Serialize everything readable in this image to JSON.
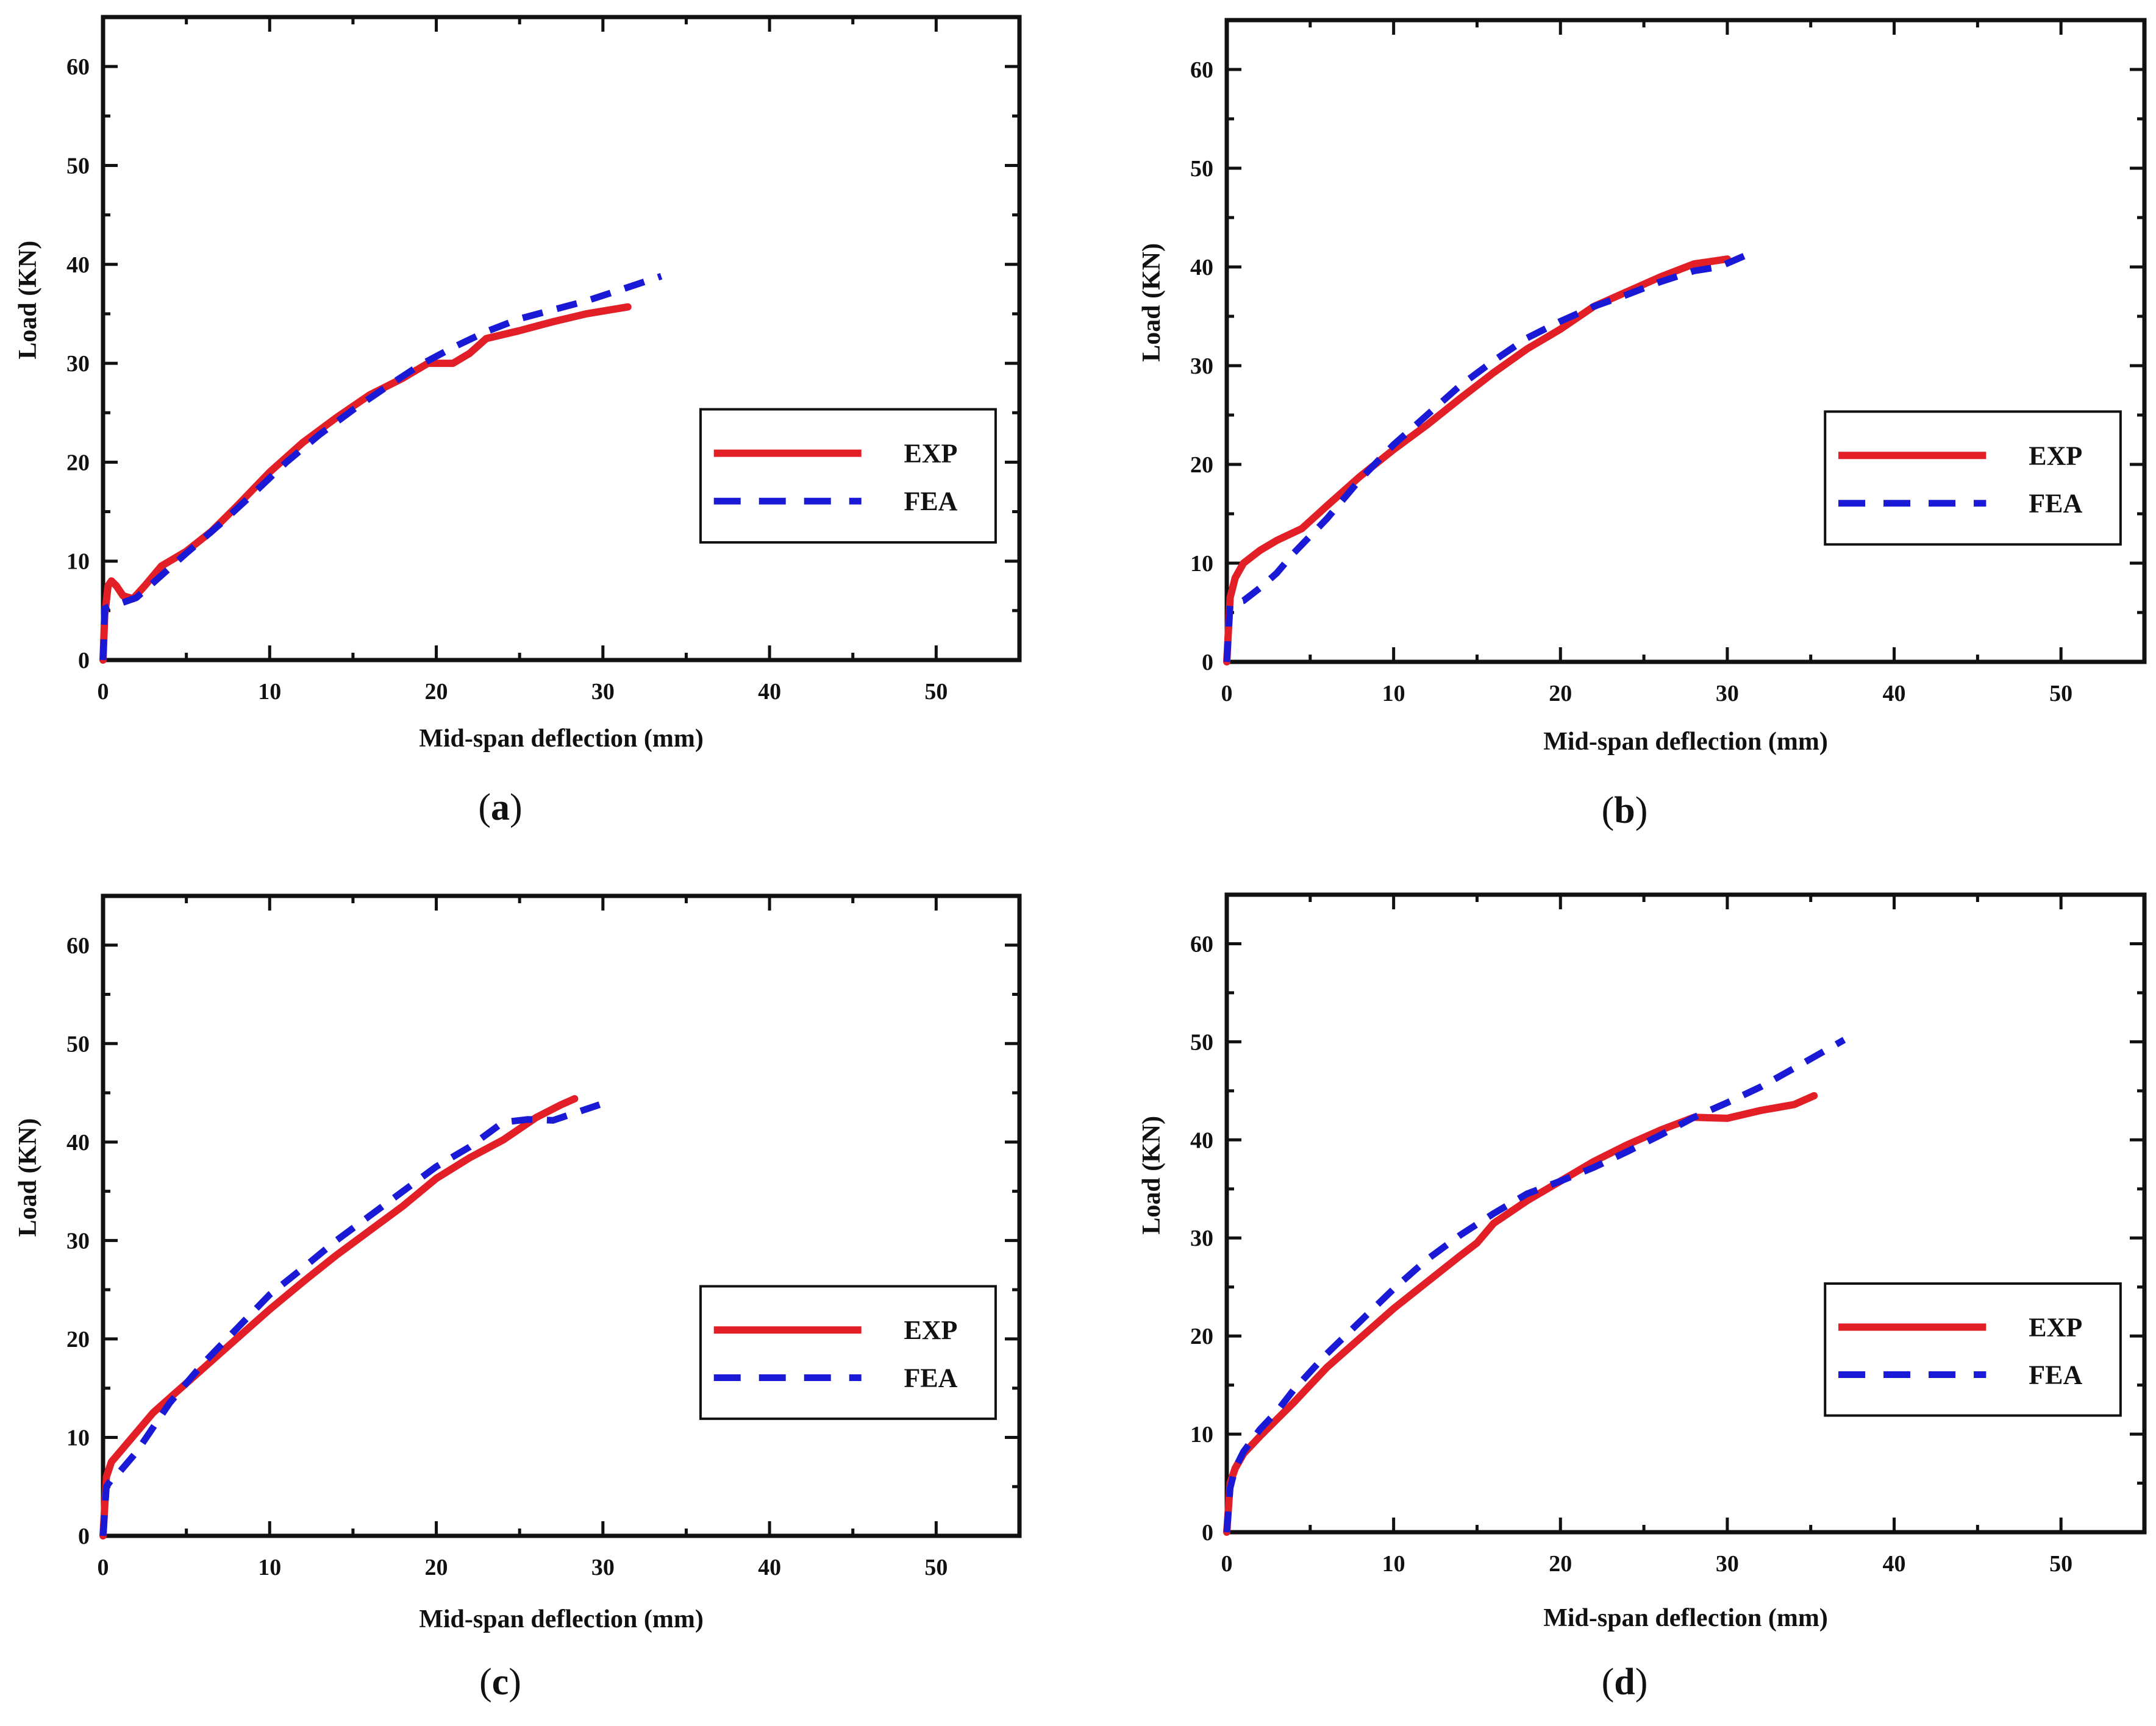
{
  "figure": {
    "panel_count": 4
  },
  "colors": {
    "exp": "#e21f26",
    "fea": "#1a1ad6",
    "axis": "#111111"
  },
  "chart_data": [
    {
      "type": "line",
      "caption_letter": "a",
      "xlabel": "Mid-span deflection (mm)",
      "ylabel": "Load (KN)",
      "xlim": [
        0,
        55
      ],
      "ylim": [
        0,
        65
      ],
      "xticks": [
        0,
        10,
        20,
        30,
        40,
        50
      ],
      "yticks": [
        0,
        10,
        20,
        30,
        40,
        50,
        60
      ],
      "legend": {
        "position": "right-middle",
        "entries": [
          "EXP",
          "FEA"
        ]
      },
      "series": [
        {
          "name": "EXP",
          "style": "solid",
          "x": [
            0,
            0.1,
            0.3,
            0.5,
            0.8,
            1.2,
            1.8,
            2.5,
            3.5,
            5,
            6.5,
            8,
            10,
            12,
            14,
            16,
            18,
            19.5,
            21,
            22,
            23,
            25,
            27,
            29,
            31.5
          ],
          "y": [
            0,
            4.5,
            7.5,
            8,
            7.5,
            6.5,
            6.2,
            7.5,
            9.5,
            11,
            13,
            15.5,
            19,
            22,
            24.5,
            26.8,
            28.5,
            30,
            30,
            31,
            32.5,
            33.3,
            34.2,
            35,
            35.7
          ]
        },
        {
          "name": "FEA",
          "style": "dashed",
          "x": [
            0,
            0.1,
            0.5,
            1,
            2,
            3,
            5,
            7,
            9,
            11,
            13,
            15,
            17,
            19,
            21,
            23,
            25,
            27,
            29,
            31,
            33.5
          ],
          "y": [
            0,
            5.2,
            5.5,
            5.7,
            6.3,
            7.8,
            10.8,
            13.7,
            16.8,
            20,
            22.8,
            25.3,
            27.6,
            29.8,
            31.6,
            33.2,
            34.5,
            35.4,
            36.3,
            37.4,
            38.8
          ]
        }
      ]
    },
    {
      "type": "line",
      "caption_letter": "b",
      "xlabel": "Mid-span deflection (mm)",
      "ylabel": "Load (KN)",
      "xlim": [
        0,
        55
      ],
      "ylim": [
        0,
        65
      ],
      "xticks": [
        0,
        10,
        20,
        30,
        40,
        50
      ],
      "yticks": [
        0,
        10,
        20,
        30,
        40,
        50,
        60
      ],
      "legend": {
        "position": "right-middle",
        "entries": [
          "EXP",
          "FEA"
        ]
      },
      "series": [
        {
          "name": "EXP",
          "style": "solid",
          "x": [
            0,
            0.2,
            0.5,
            1,
            2,
            3,
            4.5,
            6,
            8,
            10,
            12,
            14,
            16,
            18,
            20,
            22,
            24,
            26,
            28,
            30
          ],
          "y": [
            0,
            6.5,
            8.5,
            10,
            11.3,
            12.3,
            13.5,
            15.8,
            18.8,
            21.5,
            24,
            26.7,
            29.3,
            31.7,
            33.7,
            36,
            37.5,
            39,
            40.3,
            40.8
          ]
        },
        {
          "name": "FEA",
          "style": "dashed",
          "x": [
            0,
            0.2,
            0.5,
            1,
            2,
            3,
            4,
            6,
            8,
            10,
            12,
            14,
            16,
            18,
            20,
            22,
            24,
            26,
            28,
            29.5,
            31
          ],
          "y": [
            0,
            5.8,
            6,
            6.2,
            7.5,
            9,
            11,
            14.5,
            18.5,
            22,
            25,
            28,
            30.5,
            32.8,
            34.5,
            36,
            37.2,
            38.5,
            39.6,
            40,
            41.1
          ]
        }
      ]
    },
    {
      "type": "line",
      "caption_letter": "c",
      "xlabel": "Mid-span deflection (mm)",
      "ylabel": "Load (KN)",
      "xlim": [
        0,
        55
      ],
      "ylim": [
        0,
        65
      ],
      "xticks": [
        0,
        10,
        20,
        30,
        40,
        50
      ],
      "yticks": [
        0,
        10,
        20,
        30,
        40,
        50,
        60
      ],
      "legend": {
        "position": "right-middle",
        "entries": [
          "EXP",
          "FEA"
        ]
      },
      "series": [
        {
          "name": "EXP",
          "style": "solid",
          "x": [
            0,
            0.2,
            0.5,
            1,
            2,
            3,
            4,
            6,
            8,
            10,
            12,
            14,
            16,
            18,
            20,
            22,
            24,
            26,
            27.5,
            28.3
          ],
          "y": [
            0,
            6,
            7.5,
            8.5,
            10.5,
            12.5,
            14,
            17,
            20,
            23,
            25.8,
            28.5,
            31,
            33.5,
            36.3,
            38.4,
            40.2,
            42.5,
            43.8,
            44.4
          ]
        },
        {
          "name": "FEA",
          "style": "dashed",
          "x": [
            0,
            0.2,
            0.5,
            1,
            2,
            3,
            4,
            6,
            8,
            10,
            12,
            14,
            16,
            18,
            20,
            22,
            24,
            25.5,
            27,
            29.8
          ],
          "y": [
            0,
            5,
            5.7,
            6.5,
            8.5,
            11,
            13.5,
            17.5,
            21,
            24.5,
            27.2,
            30,
            32.5,
            35,
            37.5,
            39.5,
            42,
            42.3,
            42.2,
            43.8
          ]
        }
      ]
    },
    {
      "type": "line",
      "caption_letter": "d",
      "xlabel": "Mid-span deflection (mm)",
      "ylabel": "Load (KN)",
      "xlim": [
        0,
        55
      ],
      "ylim": [
        0,
        65
      ],
      "xticks": [
        0,
        10,
        20,
        30,
        40,
        50
      ],
      "yticks": [
        0,
        10,
        20,
        30,
        40,
        50,
        60
      ],
      "legend": {
        "position": "right-middle",
        "entries": [
          "EXP",
          "FEA"
        ]
      },
      "series": [
        {
          "name": "EXP",
          "style": "solid",
          "x": [
            0,
            0.2,
            0.5,
            1,
            2,
            3,
            4,
            5,
            6,
            8,
            10,
            12,
            14,
            15,
            16,
            18,
            20,
            22,
            24,
            26,
            28,
            30,
            32,
            34,
            35.2
          ],
          "y": [
            0,
            5,
            6.5,
            8,
            9.8,
            11.5,
            13.2,
            15,
            16.8,
            19.8,
            22.8,
            25.5,
            28.2,
            29.5,
            31.5,
            33.8,
            35.8,
            37.8,
            39.5,
            41,
            42.3,
            42.2,
            43,
            43.6,
            44.5
          ]
        },
        {
          "name": "FEA",
          "style": "dashed",
          "x": [
            0,
            0.2,
            0.5,
            1,
            2,
            3,
            4,
            6,
            8,
            10,
            12,
            14,
            16,
            18,
            20,
            22,
            24,
            26,
            28,
            30,
            32,
            34,
            37
          ],
          "y": [
            0,
            4.5,
            6.5,
            8.2,
            10.5,
            12.3,
            14.5,
            18.2,
            21.5,
            24.8,
            27.8,
            30.3,
            32.5,
            34.5,
            35.8,
            37.2,
            38.8,
            40.5,
            42.3,
            43.8,
            45.4,
            47.3,
            50.2
          ]
        }
      ]
    }
  ]
}
